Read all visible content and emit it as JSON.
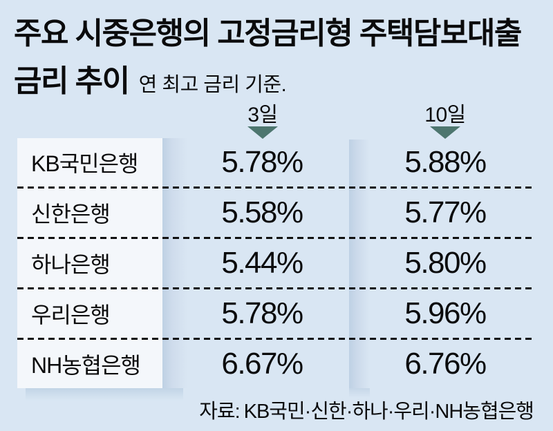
{
  "title": {
    "line1": "주요 시중은행의 고정금리형 주택담보대출",
    "line2": "금리 추이",
    "subtitle": "연 최고 금리 기준."
  },
  "columns": [
    {
      "label": "3일"
    },
    {
      "label": "10일"
    }
  ],
  "rows": [
    {
      "bank": "KB국민은행",
      "day3": "5.78%",
      "day10": "5.88%"
    },
    {
      "bank": "신한은행",
      "day3": "5.58%",
      "day10": "5.77%"
    },
    {
      "bank": "하나은행",
      "day3": "5.44%",
      "day10": "5.80%"
    },
    {
      "bank": "우리은행",
      "day3": "5.78%",
      "day10": "5.96%"
    },
    {
      "bank": "NH농협은행",
      "day3": "6.67%",
      "day10": "6.76%"
    }
  ],
  "source": {
    "label": "자료:",
    "text": "KB국민·신한·하나·우리·NH농협은행"
  },
  "colors": {
    "background": "#d9e6f3",
    "panel": "#f4f7fb",
    "shadow": "#bed1e4",
    "arrow": "#4d766f",
    "text": "#0b0b0c"
  },
  "chart_data": {
    "type": "table",
    "title": "주요 시중은행의 고정금리형 주택담보대출 금리 추이",
    "subtitle": "연 최고 금리 기준.",
    "categories": [
      "KB국민은행",
      "신한은행",
      "하나은행",
      "우리은행",
      "NH농협은행"
    ],
    "series": [
      {
        "name": "3일",
        "unit": "%",
        "values": [
          5.78,
          5.58,
          5.44,
          5.78,
          6.67
        ]
      },
      {
        "name": "10일",
        "unit": "%",
        "values": [
          5.88,
          5.77,
          5.8,
          5.96,
          6.76
        ]
      }
    ],
    "source": "자료: KB국민·신한·하나·우리·NH농협은행"
  }
}
